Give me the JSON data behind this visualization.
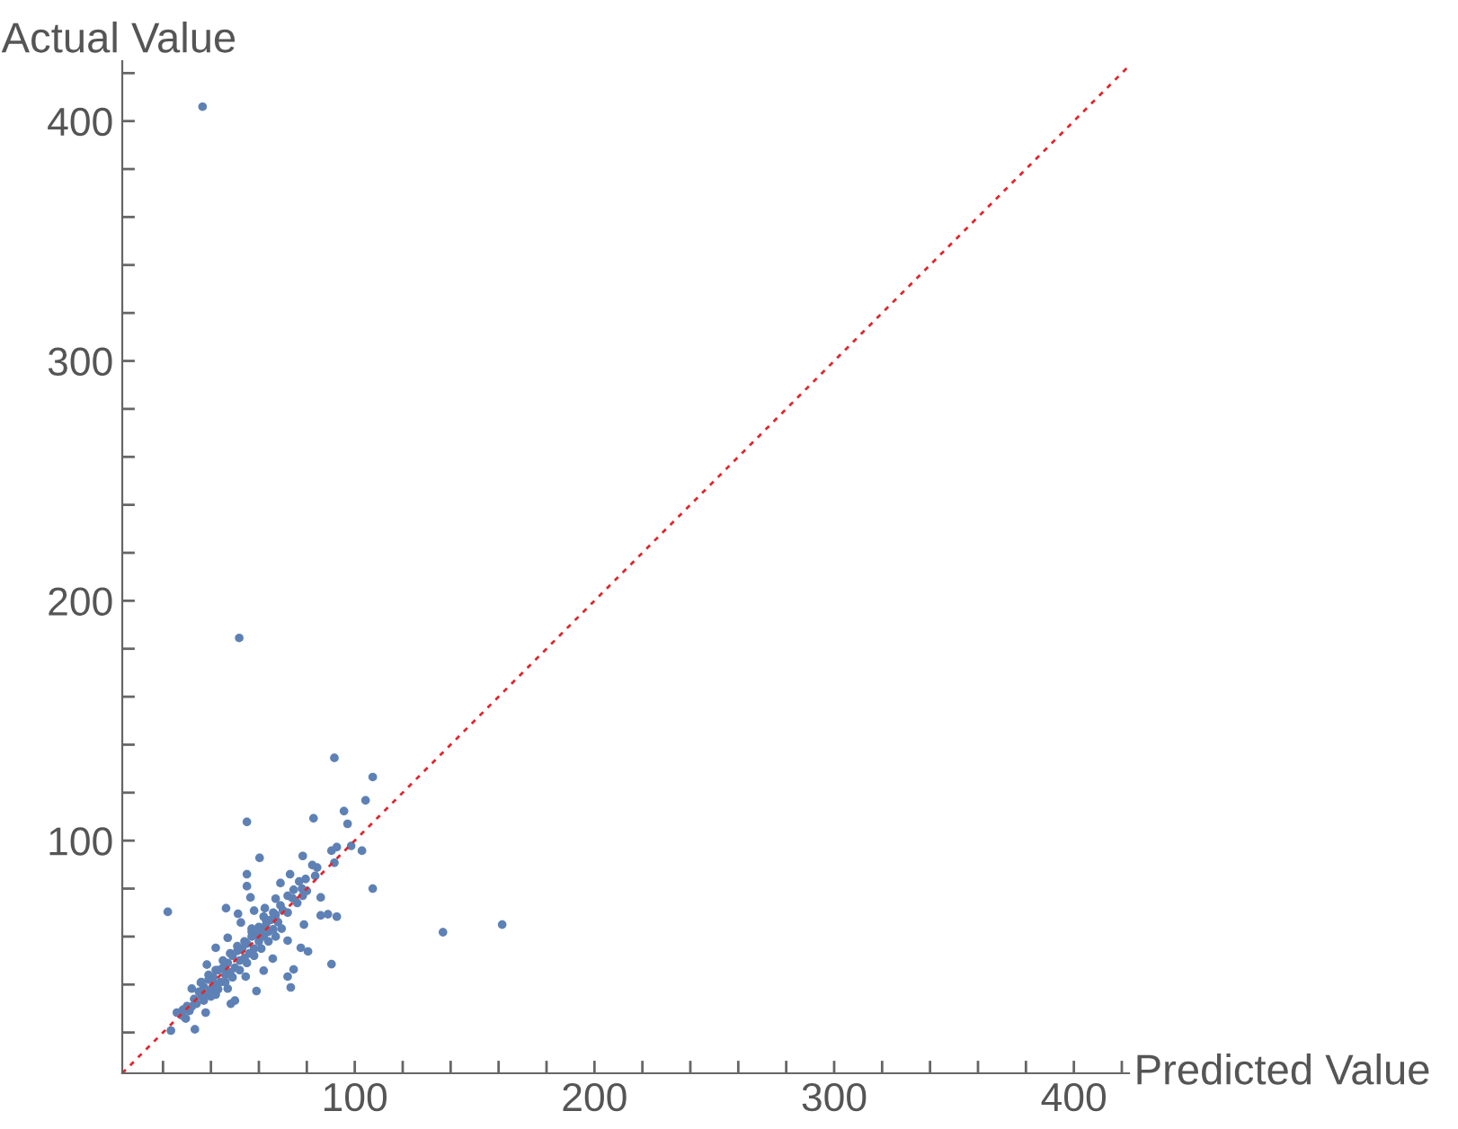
{
  "chart_data": {
    "type": "scatter",
    "xlabel": "Predicted Value",
    "ylabel": "Actual Value",
    "xlim": [
      3,
      423
    ],
    "ylim": [
      3,
      425
    ],
    "xticks": [
      {
        "value": 20,
        "label": null
      },
      {
        "value": 40,
        "label": null
      },
      {
        "value": 60,
        "label": null
      },
      {
        "value": 80,
        "label": null
      },
      100,
      {
        "value": 120,
        "label": null
      },
      {
        "value": 140,
        "label": null
      },
      {
        "value": 160,
        "label": null
      },
      {
        "value": 180,
        "label": null
      },
      200,
      {
        "value": 220,
        "label": null
      },
      {
        "value": 240,
        "label": null
      },
      {
        "value": 260,
        "label": null
      },
      {
        "value": 280,
        "label": null
      },
      300,
      {
        "value": 320,
        "label": null
      },
      {
        "value": 340,
        "label": null
      },
      {
        "value": 360,
        "label": null
      },
      {
        "value": 380,
        "label": null
      },
      400,
      {
        "value": 420,
        "label": null
      }
    ],
    "yticks": [
      {
        "value": 20,
        "label": null
      },
      {
        "value": 40,
        "label": null
      },
      {
        "value": 60,
        "label": null
      },
      {
        "value": 80,
        "label": null
      },
      100,
      {
        "value": 120,
        "label": null
      },
      {
        "value": 140,
        "label": null
      },
      {
        "value": 160,
        "label": null
      },
      {
        "value": 180,
        "label": null
      },
      200,
      {
        "value": 220,
        "label": null
      },
      {
        "value": 240,
        "label": null
      },
      {
        "value": 260,
        "label": null
      },
      {
        "value": 280,
        "label": null
      },
      300,
      {
        "value": 320,
        "label": null
      },
      {
        "value": 340,
        "label": null
      },
      {
        "value": 360,
        "label": null
      },
      {
        "value": 380,
        "label": null
      },
      400,
      {
        "value": 420,
        "label": null
      }
    ],
    "grid": false,
    "series": [
      {
        "color": "#5e81b5",
        "marker": "circle",
        "x": [
          36.5,
          51.8,
          91.5,
          107.5,
          104.5,
          95.5,
          82.8,
          55,
          97,
          98.5,
          103,
          92.5,
          90.3,
          91.5,
          60.3,
          78.3,
          107.5,
          22,
          136.8,
          161.5,
          90.3,
          73.3,
          33.3,
          23.3,
          55,
          55,
          56.5,
          46.3,
          51.3,
          58,
          62.5,
          69,
          73,
          76.8,
          79.5,
          82.3,
          84.3,
          83.5,
          85.8,
          88.8,
          85.8,
          92.5,
          78.8,
          77.5,
          80.5,
          74.5,
          72,
          59,
          50,
          48.3,
          37.8,
          25.8,
          29.5,
          32,
          35.8,
          42,
          38.3,
          47,
          52.5,
          57,
          62,
          67,
          72,
          74.5,
          78.3,
          69.5,
          72,
          65.8,
          62,
          54.5,
          47,
          42,
          37,
          32,
          28.3,
          28,
          30,
          31,
          33,
          34,
          35,
          36,
          37,
          38,
          39,
          40,
          41,
          42,
          43,
          44,
          45,
          46,
          47,
          48,
          49,
          50,
          51,
          52,
          53,
          54,
          55,
          56,
          57,
          58,
          59,
          60,
          61,
          62,
          63,
          64,
          65,
          66,
          67,
          68,
          70,
          72,
          74,
          76,
          78,
          80,
          36,
          39,
          42,
          45,
          48,
          51,
          54,
          57,
          60,
          63,
          66,
          69,
          40,
          43,
          46,
          49,
          52,
          55,
          58,
          61,
          64,
          67
        ],
        "values": [
          406,
          184.5,
          134.5,
          126.5,
          116.8,
          112.3,
          109.3,
          107.8,
          107,
          97.8,
          95.8,
          97.3,
          95.8,
          90.8,
          92.8,
          93.6,
          80,
          70.3,
          61.8,
          65,
          48.5,
          38.8,
          21.3,
          20.8,
          86,
          81,
          76.3,
          71.8,
          69.5,
          70.8,
          71.8,
          82.3,
          86,
          83,
          84,
          89.8,
          88.8,
          85.3,
          76.3,
          69.3,
          68.8,
          68.3,
          65,
          55.3,
          53.8,
          46.3,
          43.3,
          37.3,
          33.3,
          32,
          28.3,
          28.3,
          25.8,
          38.3,
          40.8,
          55.3,
          48.3,
          59.5,
          65.8,
          63.3,
          68.3,
          75.8,
          77,
          79.5,
          77,
          63.3,
          58.3,
          50.8,
          45.8,
          43.3,
          38.3,
          35.8,
          33.3,
          30.8,
          29.5,
          27,
          31,
          29,
          34,
          32,
          37,
          35,
          39,
          36,
          42,
          38,
          43,
          40,
          46,
          41,
          47,
          44,
          49,
          45,
          52,
          47,
          54,
          50,
          55,
          51,
          57,
          53,
          60,
          55,
          61,
          58,
          63,
          60,
          65,
          62,
          67,
          63,
          69,
          66,
          71,
          70,
          76,
          74,
          80,
          79,
          41,
          44,
          46,
          50,
          53,
          56,
          58,
          62,
          64,
          67,
          70,
          73,
          35,
          38,
          41,
          43,
          46,
          49,
          52,
          55,
          58,
          60
        ]
      },
      {
        "type": "line",
        "color": "#e0262b",
        "line_style": "dotted",
        "marker": "none",
        "x": [
          3,
          423
        ],
        "values": [
          3,
          423
        ]
      }
    ]
  }
}
